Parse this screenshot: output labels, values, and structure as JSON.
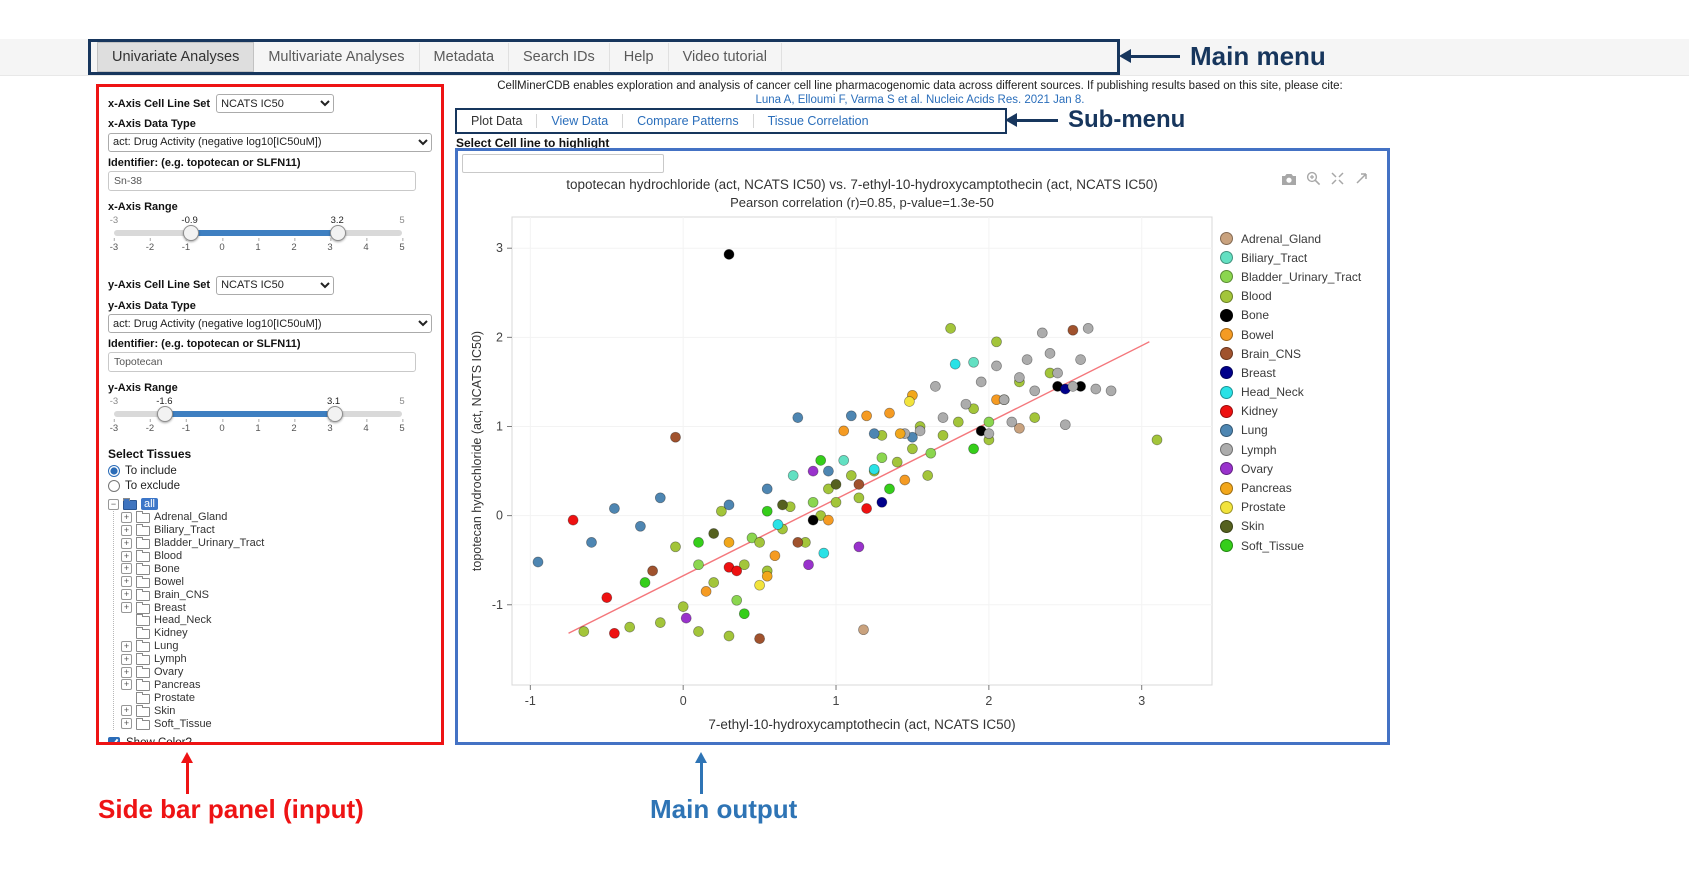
{
  "annotations": {
    "main_menu": "Main menu",
    "sub_menu": "Sub-menu",
    "sidebar": "Side bar panel (input)",
    "main_output": "Main output"
  },
  "main_menu": {
    "items": [
      {
        "label": "Univariate Analyses",
        "active": true
      },
      {
        "label": "Multivariate Analyses",
        "active": false
      },
      {
        "label": "Metadata",
        "active": false
      },
      {
        "label": "Search IDs",
        "active": false
      },
      {
        "label": "Help",
        "active": false
      },
      {
        "label": "Video tutorial",
        "active": false
      }
    ]
  },
  "citation": {
    "line1": "CellMinerCDB enables exploration and analysis of cancer cell line pharmacogenomic data across different sources. If publishing results based on this site, please cite:",
    "line2": "Luna A, Elloumi F, Varma S et al. Nucleic Acids Res. 2021 Jan 8."
  },
  "sub_menu": {
    "tabs": [
      {
        "label": "Plot Data",
        "active": true
      },
      {
        "label": "View Data",
        "active": false
      },
      {
        "label": "Compare Patterns",
        "active": false
      },
      {
        "label": "Tissue Correlation",
        "active": false
      }
    ]
  },
  "highlight_label": "Select Cell line to highlight",
  "sidebar": {
    "x_axis": {
      "set_label": "x-Axis Cell Line Set",
      "set_value": "NCATS IC50",
      "type_label": "x-Axis Data Type",
      "type_value": "act: Drug Activity (negative log10[IC50uM])",
      "id_label": "Identifier: (e.g. topotecan or SLFN11)",
      "id_value": "Sn-38",
      "range_label": "x-Axis Range",
      "slider": {
        "min": -3,
        "max": 5,
        "low": -0.9,
        "high": 3.2,
        "ticks": [
          -3,
          -2,
          -1,
          0,
          1,
          2,
          3,
          4,
          5
        ]
      }
    },
    "y_axis": {
      "set_label": "y-Axis Cell Line Set",
      "set_value": "NCATS IC50",
      "type_label": "y-Axis Data Type",
      "type_value": "act: Drug Activity (negative log10[IC50uM])",
      "id_label": "Identifier: (e.g. topotecan or SLFN11)",
      "id_value": "Topotecan",
      "range_label": "y-Axis Range",
      "slider": {
        "min": -3,
        "max": 5,
        "low": -1.6,
        "high": 3.1,
        "ticks": [
          -3,
          -2,
          -1,
          0,
          1,
          2,
          3,
          4,
          5
        ]
      }
    },
    "tissues": {
      "label": "Select Tissues",
      "options": [
        {
          "label": "To include",
          "selected": true
        },
        {
          "label": "To exclude",
          "selected": false
        }
      ],
      "root": "all",
      "items": [
        {
          "label": "Adrenal_Gland",
          "expandable": true
        },
        {
          "label": "Biliary_Tract",
          "expandable": true
        },
        {
          "label": "Bladder_Urinary_Tract",
          "expandable": true
        },
        {
          "label": "Blood",
          "expandable": true
        },
        {
          "label": "Bone",
          "expandable": true
        },
        {
          "label": "Bowel",
          "expandable": true
        },
        {
          "label": "Brain_CNS",
          "expandable": true
        },
        {
          "label": "Breast",
          "expandable": true
        },
        {
          "label": "Head_Neck",
          "expandable": false
        },
        {
          "label": "Kidney",
          "expandable": false
        },
        {
          "label": "Lung",
          "expandable": true
        },
        {
          "label": "Lymph",
          "expandable": true
        },
        {
          "label": "Ovary",
          "expandable": true
        },
        {
          "label": "Pancreas",
          "expandable": true
        },
        {
          "label": "Prostate",
          "expandable": false
        },
        {
          "label": "Skin",
          "expandable": true
        },
        {
          "label": "Soft_Tissue",
          "expandable": true
        }
      ],
      "show_color": {
        "label": "Show Color?",
        "checked": true
      },
      "no_selection": "no_selection"
    }
  },
  "modebar_icons": [
    "camera-icon",
    "zoom-in-icon",
    "autoscale-icon",
    "reset-axes-icon"
  ],
  "chart_data": {
    "type": "scatter",
    "title": "topotecan hydrochloride (act, NCATS IC50) vs. 7-ethyl-10-hydroxycamptothecin (act, NCATS IC50)",
    "subtitle": "Pearson correlation (r)=0.85, p-value=1.3e-50",
    "xlabel": "7-ethyl-10-hydroxycamptothecin (act, NCATS IC50)",
    "ylabel": "topotecan hydrochloride (act, NCATS IC50)",
    "xlim": [
      -1.12,
      3.46
    ],
    "ylim": [
      -1.9,
      3.35
    ],
    "xticks": [
      -1,
      0,
      1,
      2,
      3
    ],
    "yticks": [
      -1,
      0,
      1,
      2,
      3
    ],
    "grid": false,
    "legend_position": "right",
    "regression": {
      "color": "#f4777c",
      "points": [
        [
          -0.75,
          -1.32
        ],
        [
          3.05,
          1.95
        ]
      ]
    },
    "series": [
      {
        "name": "Adrenal_Gland",
        "color": "#c9a27e",
        "points": [
          [
            1.18,
            -1.28
          ],
          [
            2.2,
            0.98
          ]
        ]
      },
      {
        "name": "Biliary_Tract",
        "color": "#63e0c2",
        "points": [
          [
            1.9,
            1.72
          ],
          [
            0.72,
            0.45
          ],
          [
            1.05,
            0.62
          ]
        ]
      },
      {
        "name": "Bladder_Urinary_Tract",
        "color": "#8bd64f",
        "points": [
          [
            0.1,
            -0.55
          ],
          [
            0.45,
            -0.25
          ],
          [
            0.85,
            0.15
          ],
          [
            1.3,
            0.65
          ],
          [
            1.62,
            0.7
          ],
          [
            0.35,
            -0.95
          ],
          [
            2.0,
            1.05
          ]
        ]
      },
      {
        "name": "Blood",
        "color": "#a3c53a",
        "points": [
          [
            -0.65,
            -1.3
          ],
          [
            -0.35,
            -1.25
          ],
          [
            -0.15,
            -1.2
          ],
          [
            0.0,
            -1.02
          ],
          [
            0.1,
            -1.3
          ],
          [
            0.3,
            -1.35
          ],
          [
            0.2,
            -0.75
          ],
          [
            0.4,
            -0.55
          ],
          [
            0.5,
            -0.3
          ],
          [
            0.55,
            -0.62
          ],
          [
            0.65,
            -0.15
          ],
          [
            0.7,
            0.1
          ],
          [
            0.8,
            -0.3
          ],
          [
            0.9,
            0.0
          ],
          [
            0.95,
            0.3
          ],
          [
            1.0,
            0.15
          ],
          [
            1.1,
            0.45
          ],
          [
            1.15,
            0.2
          ],
          [
            1.25,
            0.5
          ],
          [
            1.3,
            0.9
          ],
          [
            1.4,
            0.6
          ],
          [
            1.5,
            0.75
          ],
          [
            1.55,
            1.0
          ],
          [
            1.6,
            0.45
          ],
          [
            1.7,
            0.9
          ],
          [
            1.8,
            1.05
          ],
          [
            1.9,
            1.2
          ],
          [
            2.0,
            0.85
          ],
          [
            2.05,
            1.95
          ],
          [
            2.1,
            1.3
          ],
          [
            2.2,
            1.5
          ],
          [
            2.3,
            1.1
          ],
          [
            2.4,
            1.6
          ],
          [
            1.75,
            2.1
          ],
          [
            3.1,
            0.85
          ],
          [
            -0.05,
            -0.35
          ],
          [
            0.25,
            0.05
          ]
        ]
      },
      {
        "name": "Bone",
        "color": "#000000",
        "points": [
          [
            0.3,
            2.93
          ],
          [
            2.45,
            1.45
          ],
          [
            2.6,
            1.45
          ],
          [
            1.95,
            0.95
          ],
          [
            0.85,
            -0.05
          ]
        ]
      },
      {
        "name": "Bowel",
        "color": "#f59b23",
        "points": [
          [
            0.15,
            -0.85
          ],
          [
            0.6,
            -0.45
          ],
          [
            1.05,
            0.95
          ],
          [
            1.35,
            1.15
          ],
          [
            1.45,
            0.4
          ],
          [
            0.95,
            -0.05
          ],
          [
            2.05,
            1.3
          ],
          [
            1.2,
            1.12
          ]
        ]
      },
      {
        "name": "Brain_CNS",
        "color": "#a0522d",
        "points": [
          [
            -0.05,
            0.88
          ],
          [
            2.55,
            2.08
          ],
          [
            -0.2,
            -0.62
          ],
          [
            0.5,
            -1.38
          ],
          [
            1.15,
            0.35
          ],
          [
            0.75,
            -0.3
          ]
        ]
      },
      {
        "name": "Breast",
        "color": "#00008b",
        "points": [
          [
            1.3,
            0.15
          ],
          [
            2.5,
            1.42
          ]
        ]
      },
      {
        "name": "Head_Neck",
        "color": "#29e2e6",
        "points": [
          [
            1.78,
            1.7
          ],
          [
            0.62,
            -0.1
          ],
          [
            0.92,
            -0.42
          ],
          [
            1.25,
            0.52
          ]
        ]
      },
      {
        "name": "Kidney",
        "color": "#ee1111",
        "points": [
          [
            -0.72,
            -0.05
          ],
          [
            -0.45,
            -1.32
          ],
          [
            0.3,
            -0.58
          ],
          [
            -0.5,
            -0.92
          ],
          [
            1.2,
            0.08
          ],
          [
            0.35,
            -0.62
          ]
        ]
      },
      {
        "name": "Lung",
        "color": "#4e86b2",
        "points": [
          [
            -0.95,
            -0.52
          ],
          [
            -0.6,
            -0.3
          ],
          [
            -0.28,
            -0.12
          ],
          [
            -0.15,
            0.2
          ],
          [
            0.3,
            0.12
          ],
          [
            0.55,
            0.3
          ],
          [
            0.75,
            1.1
          ],
          [
            1.25,
            0.92
          ],
          [
            0.95,
            0.5
          ],
          [
            1.5,
            0.88
          ],
          [
            -0.45,
            0.08
          ],
          [
            1.1,
            1.12
          ]
        ]
      },
      {
        "name": "Lymph",
        "color": "#acacac",
        "points": [
          [
            1.55,
            0.95
          ],
          [
            1.7,
            1.1
          ],
          [
            1.85,
            1.25
          ],
          [
            1.95,
            1.5
          ],
          [
            2.05,
            1.68
          ],
          [
            2.1,
            1.3
          ],
          [
            2.2,
            1.55
          ],
          [
            2.25,
            1.75
          ],
          [
            2.3,
            1.4
          ],
          [
            2.4,
            1.82
          ],
          [
            2.45,
            1.6
          ],
          [
            2.55,
            1.45
          ],
          [
            2.6,
            1.75
          ],
          [
            2.65,
            2.1
          ],
          [
            2.7,
            1.42
          ],
          [
            2.35,
            2.05
          ],
          [
            2.15,
            1.05
          ],
          [
            1.65,
            1.45
          ],
          [
            2.8,
            1.4
          ],
          [
            1.45,
            0.92
          ],
          [
            2.5,
            1.02
          ],
          [
            2.0,
            0.92
          ]
        ]
      },
      {
        "name": "Ovary",
        "color": "#9932cc",
        "points": [
          [
            0.85,
            0.5
          ],
          [
            1.15,
            -0.35
          ],
          [
            0.02,
            -1.15
          ],
          [
            0.82,
            -0.55
          ]
        ]
      },
      {
        "name": "Pancreas",
        "color": "#f2a71b",
        "points": [
          [
            1.5,
            1.35
          ],
          [
            0.55,
            -0.68
          ],
          [
            1.42,
            0.92
          ],
          [
            0.3,
            -0.3
          ]
        ]
      },
      {
        "name": "Prostate",
        "color": "#f2e33c",
        "points": [
          [
            1.48,
            1.28
          ],
          [
            0.5,
            -0.78
          ]
        ]
      },
      {
        "name": "Skin",
        "color": "#55611f",
        "points": [
          [
            0.2,
            -0.2
          ],
          [
            1.0,
            0.35
          ],
          [
            0.65,
            0.12
          ]
        ]
      },
      {
        "name": "Soft_Tissue",
        "color": "#35ce1a",
        "points": [
          [
            -0.25,
            -0.75
          ],
          [
            0.1,
            -0.3
          ],
          [
            0.55,
            0.05
          ],
          [
            0.9,
            0.62
          ],
          [
            1.35,
            0.3
          ],
          [
            0.4,
            -1.1
          ],
          [
            1.9,
            0.75
          ]
        ]
      }
    ]
  }
}
